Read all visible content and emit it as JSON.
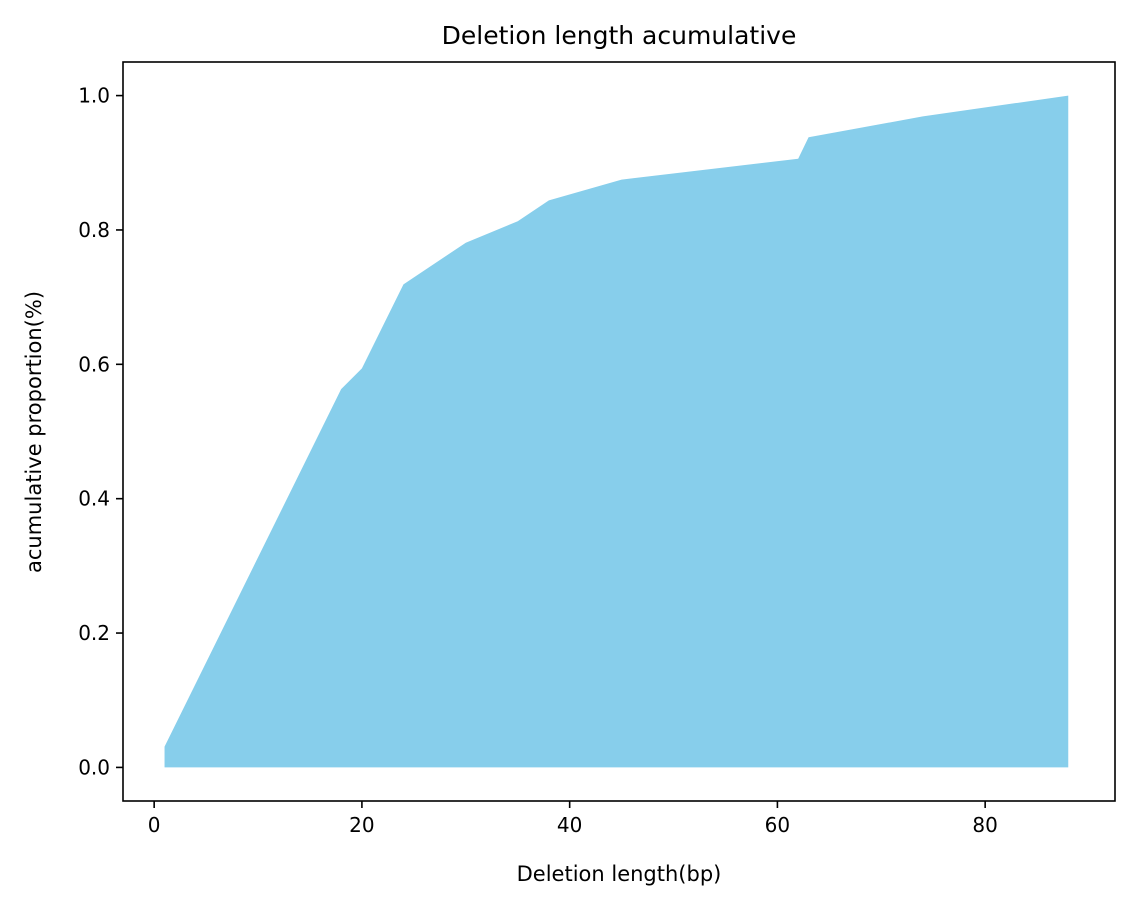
{
  "chart_data": {
    "type": "area",
    "title": "Deletion length acumulative",
    "xlabel": "Deletion length(bp)",
    "ylabel": "acumulative proportion(%)",
    "xlim": [
      -3,
      92.5
    ],
    "ylim": [
      -0.05,
      1.05
    ],
    "xticks": [
      0,
      20,
      40,
      60,
      80
    ],
    "yticks": [
      0.0,
      0.2,
      0.4,
      0.6,
      0.8,
      1.0
    ],
    "xtick_labels": [
      "0",
      "20",
      "40",
      "60",
      "80"
    ],
    "ytick_labels": [
      "0.0",
      "0.2",
      "0.4",
      "0.6",
      "0.8",
      "1.0"
    ],
    "grid": false,
    "fill_color": "#87CEEB",
    "x": [
      1,
      18,
      20,
      24,
      30,
      35,
      38,
      45,
      62,
      63,
      74,
      88
    ],
    "values": [
      0.031,
      0.563,
      0.594,
      0.719,
      0.781,
      0.813,
      0.844,
      0.875,
      0.906,
      0.938,
      0.969,
      1.0
    ]
  }
}
